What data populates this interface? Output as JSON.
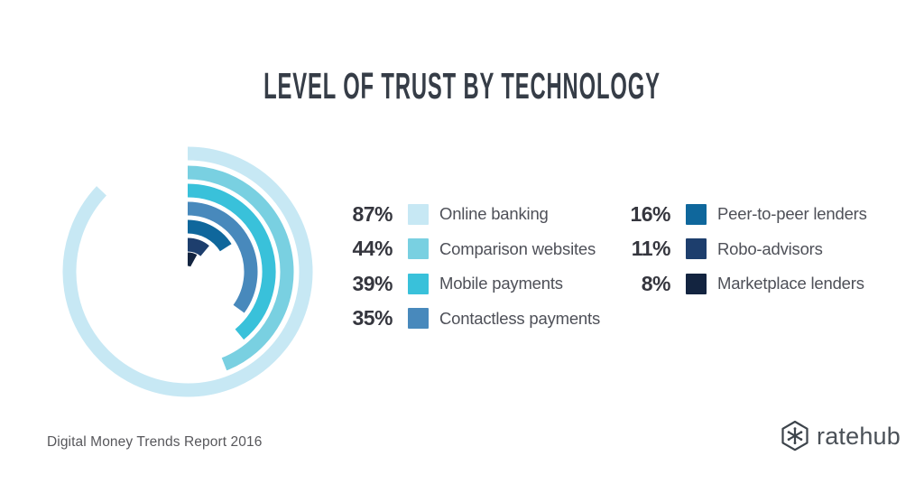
{
  "title": "LEVEL OF TRUST BY TECHNOLOGY",
  "colors": {
    "title_text": "#363d47",
    "legend_value_text": "#35363e",
    "legend_label_text": "#4e5058",
    "footer_text": "#57575b",
    "brand_text": "#4b5158",
    "brand_icon": "#3d444b"
  },
  "chart_data": {
    "type": "radial-bar",
    "title": "LEVEL OF TRUST BY TECHNOLOGY",
    "unit": "%",
    "max": 100,
    "start_angle_deg": 0,
    "direction": "clockwise",
    "grid": false,
    "legend_position": "right",
    "series": [
      {
        "label": "Online banking",
        "value": 87,
        "color": "#c7e8f4"
      },
      {
        "label": "Comparison websites",
        "value": 44,
        "color": "#79d0e1"
      },
      {
        "label": "Mobile payments",
        "value": 39,
        "color": "#39c1da"
      },
      {
        "label": "Contactless payments",
        "value": 35,
        "color": "#4889bc"
      },
      {
        "label": "Peer-to-peer lenders",
        "value": 16,
        "color": "#0f679c"
      },
      {
        "label": "Robo-advisors",
        "value": 11,
        "color": "#1d3e6d"
      },
      {
        "label": "Marketplace lenders",
        "value": 8,
        "color": "#132440"
      }
    ],
    "legend_columns": [
      [
        0,
        1,
        2,
        3
      ],
      [
        4,
        5,
        6
      ]
    ]
  },
  "footer": {
    "source": "Digital Money Trends Report 2016",
    "brand": "ratehub"
  }
}
